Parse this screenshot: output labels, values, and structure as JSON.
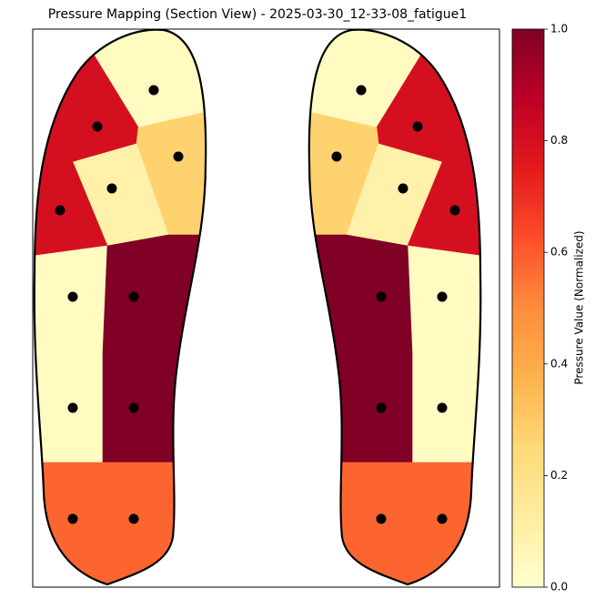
{
  "chart_data": {
    "type": "pressure-map",
    "title": "Pressure Mapping (Section View) - 2025-03-30_12-33-08_fatigue1",
    "colorbar_label": "Pressure Value (Normalized)",
    "colormap": "YlOrRd",
    "ylim": [
      0,
      1
    ],
    "yticks": [
      {
        "value": 0,
        "label": "0.0"
      },
      0.2,
      0.4,
      0.6,
      0.8,
      {
        "value": 1,
        "label": "1.0"
      }
    ],
    "series": [
      {
        "values": [
          0.03,
          0.8,
          0.27,
          0.1,
          0.8,
          0.03,
          1.0,
          0.03,
          1.0,
          0.58,
          0.58
        ]
      },
      {
        "values": [
          0.03,
          0.8,
          0.27,
          0.1,
          0.8,
          0.03,
          1.0,
          0.03,
          1.0,
          0.58,
          0.58
        ]
      }
    ]
  }
}
